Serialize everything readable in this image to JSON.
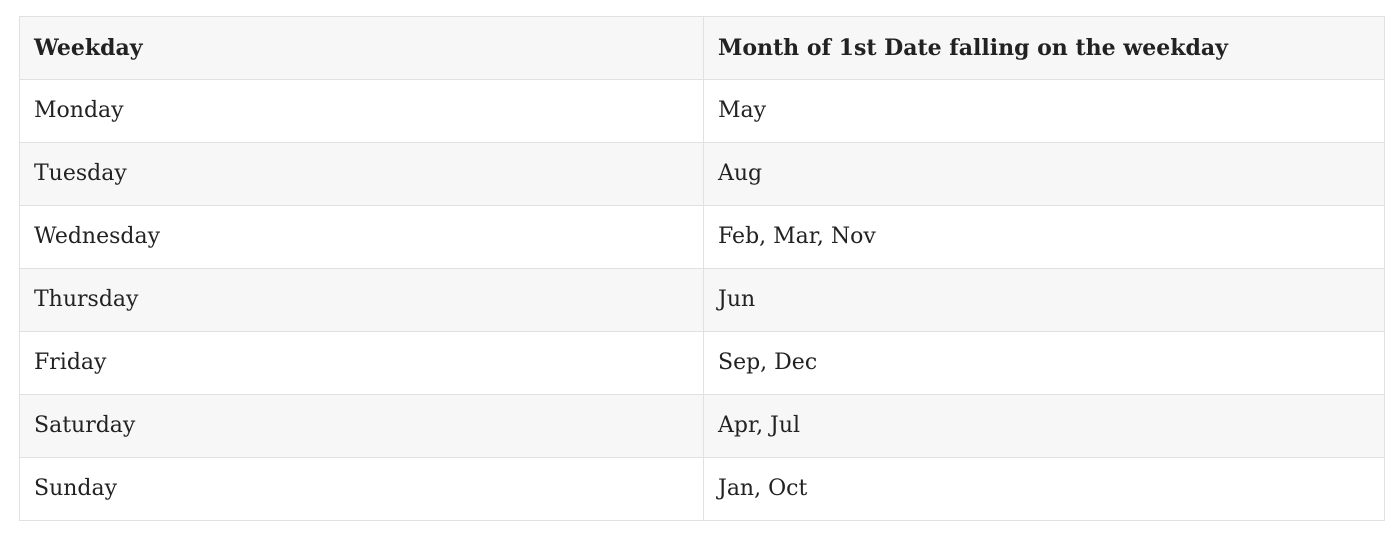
{
  "table": {
    "headers": [
      "Weekday",
      "Month of 1st Date falling on the weekday"
    ],
    "rows": [
      [
        "Monday",
        "May"
      ],
      [
        "Tuesday",
        "Aug"
      ],
      [
        "Wednesday",
        "Feb, Mar, Nov"
      ],
      [
        "Thursday",
        "Jun"
      ],
      [
        "Friday",
        "Sep, Dec"
      ],
      [
        "Saturday",
        "Apr, Jul"
      ],
      [
        "Sunday",
        "Jan, Oct"
      ]
    ]
  }
}
